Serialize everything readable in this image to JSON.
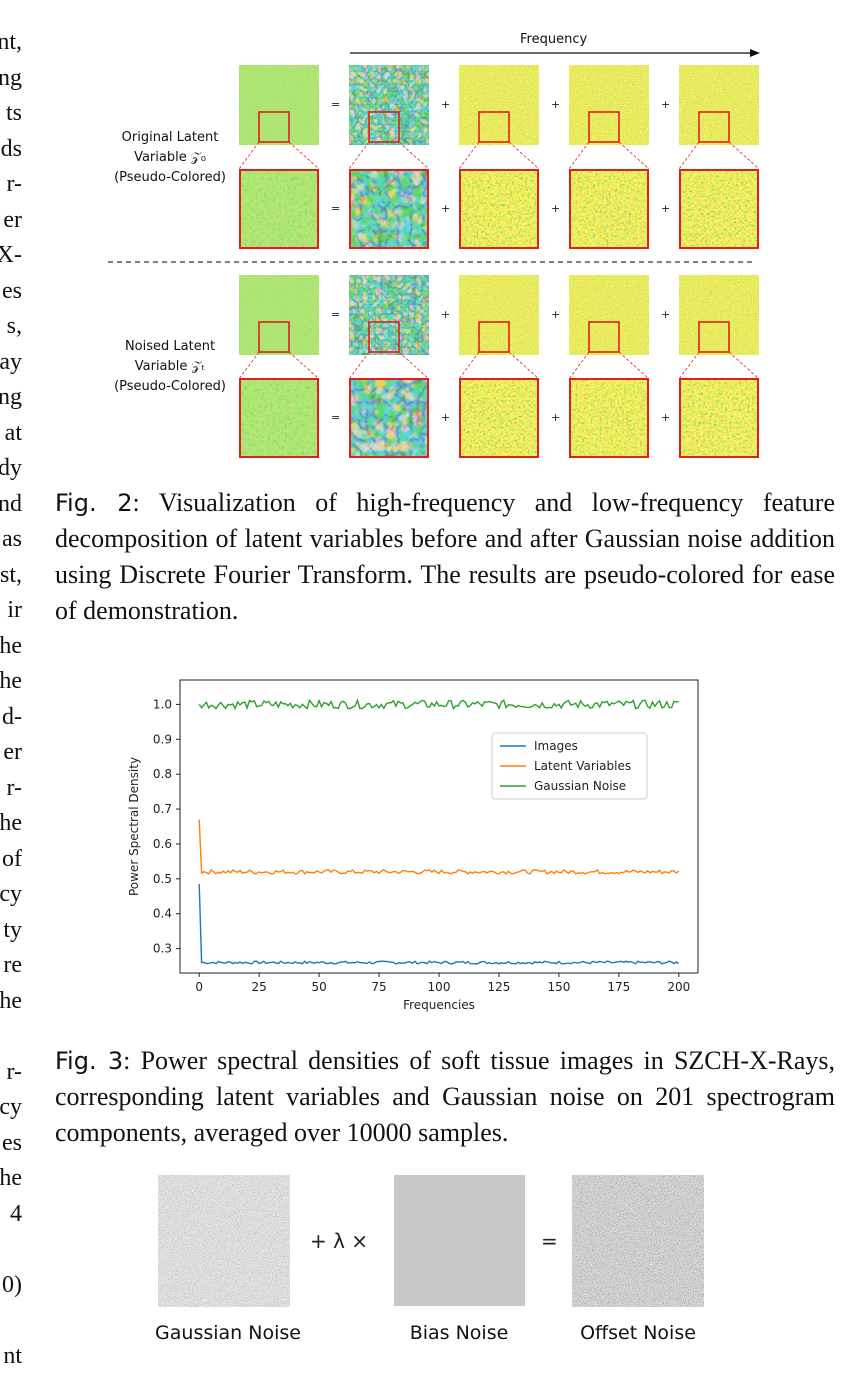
{
  "left_margin_fragments": [
    "nt,",
    "ng",
    "ts",
    "ds",
    "r-",
    "er",
    "X-",
    "es",
    "s,",
    "ay",
    "ng",
    "at",
    "dy",
    "nd",
    "as",
    "st,",
    "ir",
    "he",
    "he",
    "d-",
    "er",
    "r-",
    "he",
    "of",
    "cy",
    "ty",
    "re",
    "he",
    "",
    "r-",
    "cy",
    "es",
    "he",
    "4",
    "",
    "0)",
    "",
    "nt"
  ],
  "figure2": {
    "frequency_axis_label": "Frequency",
    "row_original_label": [
      "Original Latent",
      "Variable 𝒵₀",
      "(Pseudo-Colored)"
    ],
    "row_noised_label": [
      "Noised Latent",
      "Variable 𝒵ₜ",
      "(Pseudo-Colored)"
    ],
    "operators": [
      "=",
      "+",
      "+",
      "+"
    ],
    "caption_prefix": "Fig. 2",
    "caption_text": ": Visualization of high-frequency and low-frequency feature decomposition of latent variables before and after Gaussian noise addition using Discrete Fourier Transform. The results are pseudo-colored for ease of demonstration."
  },
  "figure3": {
    "caption_prefix": "Fig. 3",
    "caption_text": ": Power spectral densities of soft tissue images in SZCH-X-Rays, corresponding latent variables and Gaussian noise on 201 spectrogram components, averaged over 10000 samples."
  },
  "chart_data": {
    "type": "line",
    "xlabel": "Frequencies",
    "ylabel": "Power Spectral Density",
    "xlim": [
      -8,
      208
    ],
    "ylim": [
      0.23,
      1.07
    ],
    "xticks": [
      0,
      25,
      50,
      75,
      100,
      125,
      150,
      175,
      200
    ],
    "yticks": [
      0.3,
      0.4,
      0.5,
      0.6,
      0.7,
      0.8,
      0.9,
      1.0
    ],
    "legend_position": "right, upper-middle",
    "series": [
      {
        "name": "Images",
        "color": "#1f77b4",
        "first": 0.485,
        "base": 0.26,
        "jitter": 0.004
      },
      {
        "name": "Latent Variables",
        "color": "#ff7f0e",
        "first": 0.67,
        "base": 0.52,
        "jitter": 0.006
      },
      {
        "name": "Gaussian Noise",
        "color": "#2ca02c",
        "first": 1.0,
        "base": 1.0,
        "jitter": 0.012
      }
    ]
  },
  "figure4": {
    "plus_lambda": "+ λ ×",
    "equals": "=",
    "labels": [
      "Gaussian Noise",
      "Bias Noise",
      "Offset Noise"
    ]
  }
}
